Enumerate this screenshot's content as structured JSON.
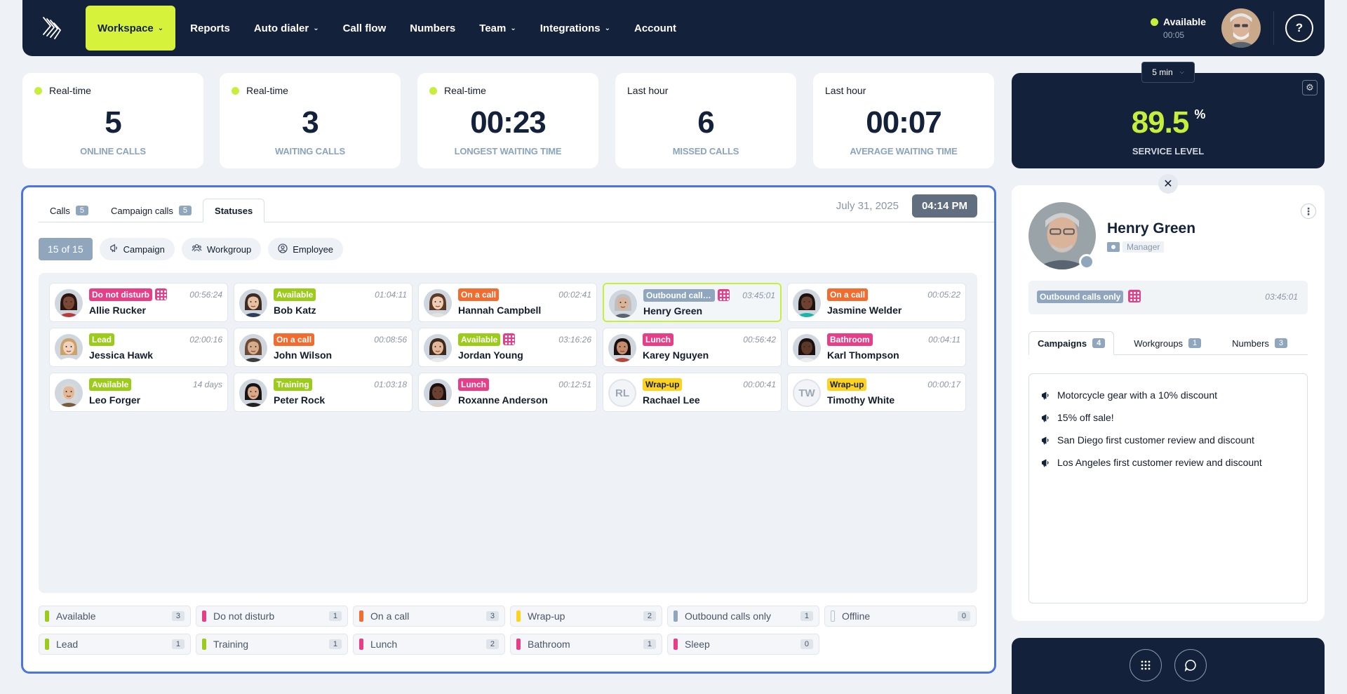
{
  "nav": {
    "items": [
      {
        "label": "Workspace",
        "dropdown": true,
        "active": true
      },
      {
        "label": "Reports",
        "dropdown": false
      },
      {
        "label": "Auto dialer",
        "dropdown": true
      },
      {
        "label": "Call flow",
        "dropdown": false
      },
      {
        "label": "Numbers",
        "dropdown": false
      },
      {
        "label": "Team",
        "dropdown": true
      },
      {
        "label": "Integrations",
        "dropdown": true
      },
      {
        "label": "Account",
        "dropdown": false
      }
    ],
    "presence_status": "Available",
    "presence_time": "00:05",
    "help_icon": "question-circle-icon"
  },
  "stats": [
    {
      "label": "Real-time",
      "live": true,
      "value": "5",
      "caption": "ONLINE CALLS"
    },
    {
      "label": "Real-time",
      "live": true,
      "value": "3",
      "caption": "WAITING CALLS"
    },
    {
      "label": "Real-time",
      "live": true,
      "value": "00:23",
      "caption": "LONGEST WAITING TIME"
    },
    {
      "label": "Last hour",
      "live": false,
      "value": "6",
      "caption": "MISSED CALLS"
    },
    {
      "label": "Last hour",
      "live": false,
      "value": "00:07",
      "caption": "AVERAGE WAITING TIME"
    }
  ],
  "service_level": {
    "period": "5 min",
    "value": "89.5",
    "unit": "%",
    "caption": "SERVICE LEVEL"
  },
  "main": {
    "tabs": [
      {
        "label": "Calls",
        "count": "5"
      },
      {
        "label": "Campaign calls",
        "count": "5"
      },
      {
        "label": "Statuses",
        "count": null
      }
    ],
    "date": "July 31, 2025",
    "time": "04:14 PM",
    "filters": {
      "count": "15 of 15",
      "campaign": "Campaign",
      "workgroup": "Workgroup",
      "employee": "Employee"
    }
  },
  "agents": [
    {
      "name": "Allie Rucker",
      "status": "Do not disturb",
      "color": "#e73f87",
      "text": "#ffffff",
      "time": "00:56:24",
      "dialer": true,
      "avatar": {
        "skin": "#7a4a36",
        "hair": "#2b1510",
        "shirt": "#b83a3a"
      }
    },
    {
      "name": "Bob Katz",
      "status": "Available",
      "color": "#9ccc1a",
      "text": "#ffffff",
      "time": "01:04:11",
      "dialer": false,
      "avatar": {
        "skin": "#e6c0a1",
        "hair": "#3b2b22",
        "shirt": "#2d3d58"
      }
    },
    {
      "name": "Hannah Campbell",
      "status": "On a call",
      "color": "#f26b2f",
      "text": "#ffffff",
      "time": "00:02:41",
      "dialer": false,
      "avatar": {
        "skin": "#f0cbb4",
        "hair": "#5a3a26",
        "shirt": "#e8e2dc"
      }
    },
    {
      "name": "Henry Green",
      "status": "Outbound calls only",
      "color": "#8fa6bd",
      "text": "#ffffff",
      "time": "03:45:01",
      "dialer": true,
      "selected": true,
      "avatar": {
        "skin": "#d9b49b",
        "hair": "#bfbfbf",
        "shirt": "#5a6470"
      }
    },
    {
      "name": "Jasmine Welder",
      "status": "On a call",
      "color": "#f26b2f",
      "text": "#ffffff",
      "time": "00:05:22",
      "dialer": false,
      "avatar": {
        "skin": "#6d4230",
        "hair": "#1c1210",
        "shirt": "#1ab5a8"
      }
    },
    {
      "name": "Jessica Hawk",
      "status": "Lead",
      "color": "#9ccc1a",
      "text": "#ffffff",
      "time": "02:00:16",
      "dialer": false,
      "avatar": {
        "skin": "#f2d2bd",
        "hair": "#c9a36b",
        "shirt": "#ffffff"
      }
    },
    {
      "name": "John Wilson",
      "status": "On a call",
      "color": "#f26b2f",
      "text": "#ffffff",
      "time": "00:08:56",
      "dialer": false,
      "avatar": {
        "skin": "#d6ab8a",
        "hair": "#6b4b36",
        "shirt": "#3c3c3c"
      }
    },
    {
      "name": "Jordan Young",
      "status": "Available",
      "color": "#9ccc1a",
      "text": "#ffffff",
      "time": "03:16:26",
      "dialer": true,
      "avatar": {
        "skin": "#e2b898",
        "hair": "#3b2a1e",
        "shirt": "#e9e9e9"
      }
    },
    {
      "name": "Karey Nguyen",
      "status": "Lunch",
      "color": "#e73f87",
      "text": "#ffffff",
      "time": "00:56:42",
      "dialer": false,
      "avatar": {
        "skin": "#c48c6c",
        "hair": "#1a1010",
        "shirt": "#b6453a"
      }
    },
    {
      "name": "Karl Thompson",
      "status": "Bathroom",
      "color": "#e73f87",
      "text": "#ffffff",
      "time": "00:04:11",
      "dialer": false,
      "avatar": {
        "skin": "#5b3827",
        "hair": "#1a1010",
        "shirt": "#ededed"
      }
    },
    {
      "name": "Leo Forger",
      "status": "Available",
      "color": "#9ccc1a",
      "text": "#ffffff",
      "time": "14 days",
      "dialer": false,
      "avatar": {
        "skin": "#e2b898",
        "hair": "#d8d8d8",
        "shirt": "#7b5a3a"
      }
    },
    {
      "name": "Peter Rock",
      "status": "Training",
      "color": "#9ccc1a",
      "text": "#ffffff",
      "time": "01:03:18",
      "dialer": false,
      "avatar": {
        "skin": "#d8a888",
        "hair": "#151515",
        "shirt": "#222222"
      }
    },
    {
      "name": "Roxanne Anderson",
      "status": "Lunch",
      "color": "#e73f87",
      "text": "#ffffff",
      "time": "00:12:51",
      "dialer": false,
      "avatar": {
        "skin": "#6a4030",
        "hair": "#1a1010",
        "shirt": "#d8d0c8"
      }
    },
    {
      "name": "Rachael Lee",
      "status": "Wrap-up",
      "color": "#ffd21f",
      "text": "#13213a",
      "time": "00:00:41",
      "dialer": false,
      "initials": "RL"
    },
    {
      "name": "Timothy White",
      "status": "Wrap-up",
      "color": "#ffd21f",
      "text": "#13213a",
      "time": "00:00:17",
      "dialer": false,
      "initials": "TW"
    }
  ],
  "legend": [
    {
      "label": "Available",
      "color": "#9ccc1a",
      "count": "3"
    },
    {
      "label": "Do not disturb",
      "color": "#e73f87",
      "count": "1"
    },
    {
      "label": "On a call",
      "color": "#f26b2f",
      "count": "3"
    },
    {
      "label": "Wrap-up",
      "color": "#ffd21f",
      "count": "2"
    },
    {
      "label": "Outbound calls only",
      "color": "#8fa6bd",
      "count": "1"
    },
    {
      "label": "Offline",
      "color": "hollow",
      "count": "0"
    },
    {
      "label": "Lead",
      "color": "#9ccc1a",
      "count": "1"
    },
    {
      "label": "Training",
      "color": "#9ccc1a",
      "count": "1"
    },
    {
      "label": "Lunch",
      "color": "#e73f87",
      "count": "2"
    },
    {
      "label": "Bathroom",
      "color": "#e73f87",
      "count": "1"
    },
    {
      "label": "Sleep",
      "color": "#e73f87",
      "count": "0"
    }
  ],
  "profile": {
    "name": "Henry Green",
    "role": "Manager",
    "status": "Outbound calls only",
    "status_time": "03:45:01",
    "tabs": [
      {
        "label": "Campaigns",
        "count": "4"
      },
      {
        "label": "Workgroups",
        "count": "1"
      },
      {
        "label": "Numbers",
        "count": "3"
      }
    ],
    "campaigns": [
      "Motorcycle gear with a 10% discount",
      "15% off sale!",
      "San Diego first customer review and discount",
      "Los Angeles first customer review and discount"
    ]
  }
}
